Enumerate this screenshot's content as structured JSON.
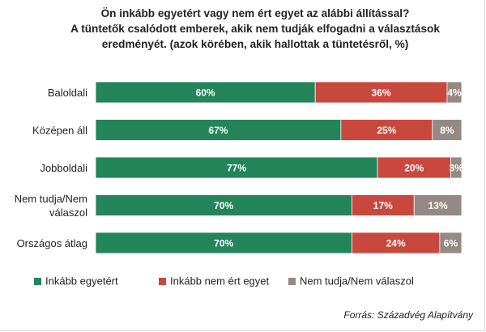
{
  "chart_data": {
    "type": "bar",
    "orientation": "horizontal",
    "stacked": true,
    "title_lines": [
      "Ön inkább egyetért vagy nem ért egyet az alábbi állítással?",
      "A tüntetők csalódott emberek, akik nem tudják elfogadni a választások",
      "eredményét. (azok körében, akik hallottak a tüntetésről, %)"
    ],
    "categories": [
      [
        "Baloldali"
      ],
      [
        "Középen áll"
      ],
      [
        "Jobboldali"
      ],
      [
        "Nem tudja/Nem",
        "válaszol"
      ],
      [
        "Országos átlag"
      ]
    ],
    "series": [
      {
        "name": "Inkább egyetért",
        "color": "#24845a",
        "values": [
          60,
          67,
          77,
          70,
          70
        ],
        "labels": [
          "60%",
          "67%",
          "77%",
          "70%",
          "70%"
        ]
      },
      {
        "name": "Inkább nem ért egyet",
        "color": "#c9483e",
        "values": [
          36,
          25,
          20,
          17,
          24
        ],
        "labels": [
          "36%",
          "25%",
          "20%",
          "17%",
          "24%"
        ]
      },
      {
        "name": "Nem tudja/Nem válaszol",
        "color": "#948985",
        "values": [
          4,
          8,
          3,
          13,
          6
        ],
        "labels": [
          "4%",
          "8%",
          "3%",
          "13%",
          "6%"
        ]
      }
    ],
    "xlim": [
      0,
      100
    ],
    "legend_position": "bottom",
    "grid": false
  },
  "source": "Forrás: Századvég Alapítvány"
}
